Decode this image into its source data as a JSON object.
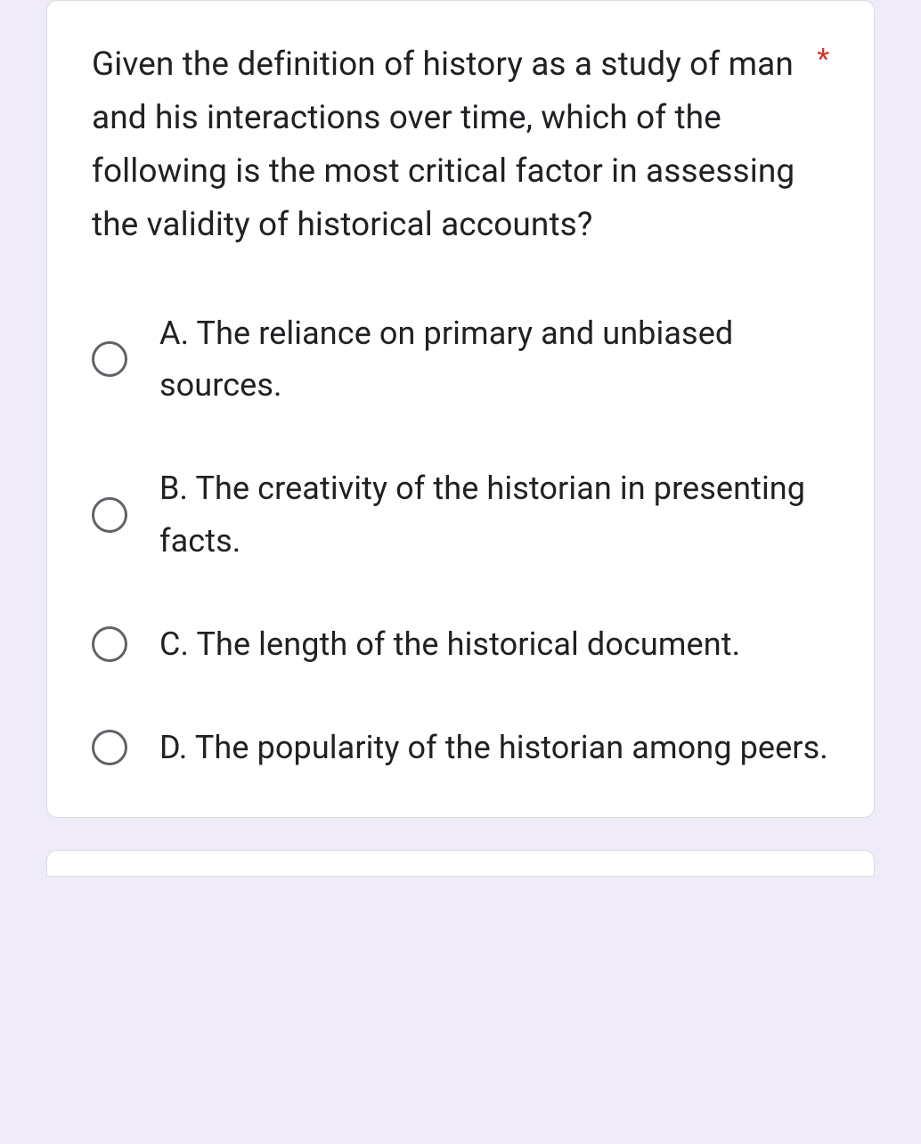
{
  "card": {
    "question_text": "Given the definition of history as a study of man and his interactions over time, which of the following is the most critical factor in assessing the validity of historical accounts?",
    "required_marker": "*",
    "options": [
      {
        "label": "A. The reliance on primary and unbiased sources."
      },
      {
        "label": "B. The creativity of the historian in presenting facts."
      },
      {
        "label": "C. The length of the historical document."
      },
      {
        "label": "D. The popularity of the historian among peers."
      }
    ]
  },
  "colors": {
    "page_background": "#f0ebf8",
    "card_background": "#ffffff",
    "card_border": "#dadce0",
    "text_primary": "#202124",
    "radio_border": "#5f6368",
    "required_color": "#d93025"
  },
  "typography": {
    "question_fontsize": 37,
    "option_fontsize": 36,
    "font_family": "Roboto, Google Sans, Arial, sans-serif"
  },
  "layout": {
    "card_border_radius": 12,
    "radio_size": 40,
    "radio_border_width": 3
  }
}
